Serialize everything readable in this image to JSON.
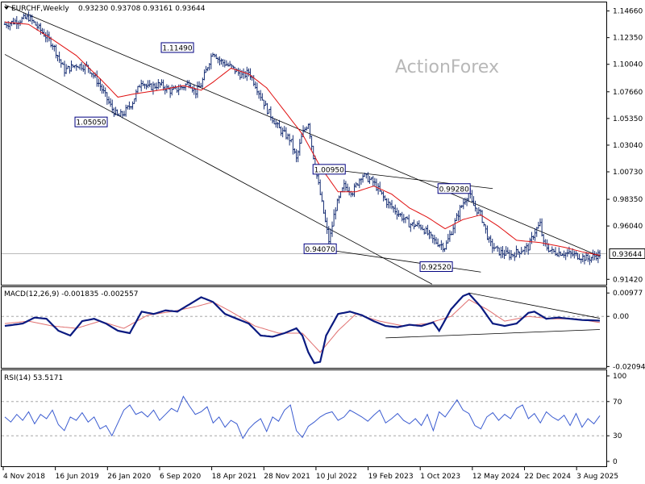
{
  "chart_data": {
    "type": "candlestick",
    "watermark": "ActionForex",
    "x_labels": [
      "4 Nov 2018",
      "16 Jun 2019",
      "26 Jan 2020",
      "6 Sep 2020",
      "18 Apr 2021",
      "28 Nov 2021",
      "10 Jul 2022",
      "19 Feb 2023",
      "1 Oct 2023",
      "12 May 2024",
      "22 Dec 2024",
      "3 Aug 2025"
    ],
    "price_panel": {
      "header": {
        "symbol": "EURCHF,Weekly",
        "ohlc": "0.93230 0.93708 0.93161 0.93644"
      },
      "y_ticks": [
        "1.14660",
        "1.12350",
        "1.10040",
        "1.07660",
        "1.05350",
        "1.03040",
        "1.00730",
        "0.98350",
        "0.96040",
        "0.93644",
        "0.91420"
      ],
      "ylim": [
        0.9095,
        1.154
      ],
      "current_price": "0.93644",
      "current_value": 0.93644,
      "annotations": [
        {
          "text": "1.11490",
          "x": 0.29,
          "y": 1.1149
        },
        {
          "text": "1.05050",
          "x": 0.145,
          "y": 1.0505
        },
        {
          "text": "1.00950",
          "x": 0.545,
          "y": 1.0095
        },
        {
          "text": "0.99280",
          "x": 0.755,
          "y": 0.9928
        },
        {
          "text": "0.94070",
          "x": 0.53,
          "y": 0.9407
        },
        {
          "text": "0.92520",
          "x": 0.725,
          "y": 0.9252
        }
      ],
      "trendlines": [
        {
          "x1": 0.0,
          "y1": 1.152,
          "x2": 1.0,
          "y2": 0.934
        },
        {
          "x1": 0.0,
          "y1": 1.109,
          "x2": 0.718,
          "y2": 0.91
        },
        {
          "x1": 0.545,
          "y1": 1.0095,
          "x2": 0.82,
          "y2": 0.9928
        },
        {
          "x1": 0.53,
          "y1": 0.9407,
          "x2": 0.8,
          "y2": 0.9205
        }
      ],
      "close_path": [
        [
          0.0,
          1.135
        ],
        [
          0.02,
          1.138
        ],
        [
          0.04,
          1.141
        ],
        [
          0.06,
          1.13
        ],
        [
          0.08,
          1.118
        ],
        [
          0.1,
          1.095
        ],
        [
          0.12,
          1.1
        ],
        [
          0.14,
          1.098
        ],
        [
          0.16,
          1.082
        ],
        [
          0.18,
          1.062
        ],
        [
          0.19,
          1.055
        ],
        [
          0.2,
          1.058
        ],
        [
          0.215,
          1.068
        ],
        [
          0.23,
          1.087
        ],
        [
          0.24,
          1.08
        ],
        [
          0.26,
          1.083
        ],
        [
          0.28,
          1.077
        ],
        [
          0.3,
          1.081
        ],
        [
          0.31,
          1.085
        ],
        [
          0.32,
          1.076
        ],
        [
          0.33,
          1.083
        ],
        [
          0.35,
          1.112
        ],
        [
          0.36,
          1.104
        ],
        [
          0.38,
          1.098
        ],
        [
          0.4,
          1.09
        ],
        [
          0.41,
          1.094
        ],
        [
          0.42,
          1.084
        ],
        [
          0.44,
          1.062
        ],
        [
          0.46,
          1.045
        ],
        [
          0.48,
          1.035
        ],
        [
          0.49,
          1.018
        ],
        [
          0.5,
          1.04
        ],
        [
          0.51,
          1.05
        ],
        [
          0.52,
          1.016
        ],
        [
          0.53,
          0.988
        ],
        [
          0.54,
          0.96
        ],
        [
          0.545,
          0.946
        ],
        [
          0.555,
          0.975
        ],
        [
          0.57,
          0.995
        ],
        [
          0.585,
          0.99
        ],
        [
          0.6,
          1.005
        ],
        [
          0.62,
          0.998
        ],
        [
          0.64,
          0.982
        ],
        [
          0.66,
          0.972
        ],
        [
          0.68,
          0.962
        ],
        [
          0.7,
          0.96
        ],
        [
          0.72,
          0.948
        ],
        [
          0.74,
          0.942
        ],
        [
          0.75,
          0.955
        ],
        [
          0.765,
          0.975
        ],
        [
          0.78,
          0.99
        ],
        [
          0.785,
          0.98
        ],
        [
          0.8,
          0.97
        ],
        [
          0.815,
          0.945
        ],
        [
          0.83,
          0.938
        ],
        [
          0.85,
          0.935
        ],
        [
          0.87,
          0.94
        ],
        [
          0.88,
          0.942
        ],
        [
          0.89,
          0.955
        ],
        [
          0.9,
          0.962
        ],
        [
          0.905,
          0.945
        ],
        [
          0.92,
          0.938
        ],
        [
          0.94,
          0.937
        ],
        [
          0.96,
          0.935
        ],
        [
          0.98,
          0.932
        ],
        [
          1.0,
          0.9364
        ]
      ],
      "ma_path": [
        [
          0.0,
          1.137
        ],
        [
          0.04,
          1.135
        ],
        [
          0.08,
          1.122
        ],
        [
          0.12,
          1.108
        ],
        [
          0.16,
          1.088
        ],
        [
          0.19,
          1.072
        ],
        [
          0.22,
          1.075
        ],
        [
          0.26,
          1.078
        ],
        [
          0.3,
          1.082
        ],
        [
          0.33,
          1.078
        ],
        [
          0.35,
          1.085
        ],
        [
          0.38,
          1.097
        ],
        [
          0.41,
          1.092
        ],
        [
          0.44,
          1.08
        ],
        [
          0.47,
          1.06
        ],
        [
          0.5,
          1.04
        ],
        [
          0.53,
          1.012
        ],
        [
          0.56,
          0.99
        ],
        [
          0.59,
          0.99
        ],
        [
          0.62,
          0.995
        ],
        [
          0.65,
          0.988
        ],
        [
          0.68,
          0.976
        ],
        [
          0.71,
          0.968
        ],
        [
          0.74,
          0.958
        ],
        [
          0.77,
          0.966
        ],
        [
          0.8,
          0.97
        ],
        [
          0.83,
          0.96
        ],
        [
          0.86,
          0.948
        ],
        [
          0.9,
          0.946
        ],
        [
          0.94,
          0.942
        ],
        [
          0.97,
          0.938
        ],
        [
          1.0,
          0.935
        ]
      ]
    },
    "macd_panel": {
      "header": "MACD(12,26,9) -0.001835 -0.002557",
      "y_ticks": [
        "0.00977",
        "0.00",
        "-0.020949"
      ],
      "ylim": [
        -0.0215,
        0.0122
      ],
      "zero_value": 0.0,
      "trendlines": [
        {
          "x1": 0.78,
          "y1": 0.0098,
          "x2": 1.0,
          "y2": -0.0008
        },
        {
          "x1": 0.64,
          "y1": -0.009,
          "x2": 1.0,
          "y2": -0.0055
        }
      ],
      "macd_path": [
        [
          0.0,
          -0.004
        ],
        [
          0.03,
          -0.003
        ],
        [
          0.05,
          -0.0005
        ],
        [
          0.07,
          -0.001
        ],
        [
          0.09,
          -0.006
        ],
        [
          0.11,
          -0.008
        ],
        [
          0.13,
          -0.002
        ],
        [
          0.15,
          -0.001
        ],
        [
          0.17,
          -0.003
        ],
        [
          0.19,
          -0.006
        ],
        [
          0.21,
          -0.007
        ],
        [
          0.23,
          0.002
        ],
        [
          0.25,
          0.001
        ],
        [
          0.27,
          0.0025
        ],
        [
          0.29,
          0.002
        ],
        [
          0.31,
          0.005
        ],
        [
          0.33,
          0.008
        ],
        [
          0.35,
          0.006
        ],
        [
          0.37,
          0.001
        ],
        [
          0.39,
          -0.001
        ],
        [
          0.41,
          -0.003
        ],
        [
          0.43,
          -0.008
        ],
        [
          0.45,
          -0.0085
        ],
        [
          0.47,
          -0.007
        ],
        [
          0.49,
          -0.005
        ],
        [
          0.5,
          -0.008
        ],
        [
          0.51,
          -0.015
        ],
        [
          0.52,
          -0.0195
        ],
        [
          0.53,
          -0.019
        ],
        [
          0.54,
          -0.008
        ],
        [
          0.56,
          0.001
        ],
        [
          0.58,
          0.002
        ],
        [
          0.6,
          0.0005
        ],
        [
          0.62,
          -0.002
        ],
        [
          0.64,
          -0.004
        ],
        [
          0.66,
          -0.0045
        ],
        [
          0.68,
          -0.0035
        ],
        [
          0.7,
          -0.004
        ],
        [
          0.72,
          -0.0025
        ],
        [
          0.73,
          -0.006
        ],
        [
          0.75,
          0.003
        ],
        [
          0.77,
          0.0085
        ],
        [
          0.78,
          0.0095
        ],
        [
          0.8,
          0.004
        ],
        [
          0.82,
          -0.003
        ],
        [
          0.84,
          -0.004
        ],
        [
          0.86,
          -0.003
        ],
        [
          0.88,
          0.0015
        ],
        [
          0.89,
          0.002
        ],
        [
          0.91,
          -0.001
        ],
        [
          0.93,
          -0.0005
        ],
        [
          0.95,
          -0.001
        ],
        [
          0.97,
          -0.0015
        ],
        [
          1.0,
          -0.0018
        ]
      ],
      "signal_path": [
        [
          0.0,
          -0.003
        ],
        [
          0.04,
          -0.002
        ],
        [
          0.08,
          -0.004
        ],
        [
          0.12,
          -0.005
        ],
        [
          0.16,
          -0.002
        ],
        [
          0.2,
          -0.005
        ],
        [
          0.24,
          0.0005
        ],
        [
          0.28,
          0.002
        ],
        [
          0.32,
          0.004
        ],
        [
          0.35,
          0.006
        ],
        [
          0.38,
          0.002
        ],
        [
          0.42,
          -0.004
        ],
        [
          0.46,
          -0.007
        ],
        [
          0.5,
          -0.007
        ],
        [
          0.53,
          -0.015
        ],
        [
          0.56,
          -0.006
        ],
        [
          0.59,
          0.001
        ],
        [
          0.63,
          -0.002
        ],
        [
          0.67,
          -0.004
        ],
        [
          0.71,
          -0.003
        ],
        [
          0.75,
          0.0
        ],
        [
          0.78,
          0.007
        ],
        [
          0.81,
          0.003
        ],
        [
          0.84,
          -0.002
        ],
        [
          0.88,
          0.0
        ],
        [
          0.92,
          -0.001
        ],
        [
          0.96,
          -0.001
        ],
        [
          1.0,
          -0.0026
        ]
      ]
    },
    "rsi_panel": {
      "header": "RSI(14) 53.5171",
      "y_ticks": [
        "100",
        "70",
        "30",
        "0"
      ],
      "levels": [
        70,
        30
      ],
      "ylim": [
        0,
        100
      ],
      "rsi_path": [
        [
          0.0,
          52
        ],
        [
          0.01,
          46
        ],
        [
          0.02,
          55
        ],
        [
          0.03,
          48
        ],
        [
          0.04,
          58
        ],
        [
          0.05,
          44
        ],
        [
          0.06,
          55
        ],
        [
          0.07,
          50
        ],
        [
          0.08,
          60
        ],
        [
          0.09,
          43
        ],
        [
          0.1,
          36
        ],
        [
          0.11,
          52
        ],
        [
          0.12,
          48
        ],
        [
          0.13,
          57
        ],
        [
          0.14,
          46
        ],
        [
          0.15,
          52
        ],
        [
          0.16,
          38
        ],
        [
          0.17,
          42
        ],
        [
          0.18,
          30
        ],
        [
          0.19,
          45
        ],
        [
          0.2,
          60
        ],
        [
          0.21,
          66
        ],
        [
          0.22,
          55
        ],
        [
          0.23,
          58
        ],
        [
          0.24,
          52
        ],
        [
          0.25,
          60
        ],
        [
          0.26,
          48
        ],
        [
          0.27,
          55
        ],
        [
          0.28,
          62
        ],
        [
          0.29,
          58
        ],
        [
          0.3,
          76
        ],
        [
          0.31,
          65
        ],
        [
          0.32,
          55
        ],
        [
          0.33,
          58
        ],
        [
          0.34,
          64
        ],
        [
          0.35,
          45
        ],
        [
          0.36,
          52
        ],
        [
          0.37,
          40
        ],
        [
          0.38,
          48
        ],
        [
          0.39,
          44
        ],
        [
          0.4,
          27
        ],
        [
          0.41,
          38
        ],
        [
          0.42,
          45
        ],
        [
          0.43,
          50
        ],
        [
          0.44,
          35
        ],
        [
          0.45,
          52
        ],
        [
          0.46,
          47
        ],
        [
          0.47,
          60
        ],
        [
          0.48,
          66
        ],
        [
          0.49,
          36
        ],
        [
          0.5,
          28
        ],
        [
          0.51,
          41
        ],
        [
          0.52,
          46
        ],
        [
          0.53,
          52
        ],
        [
          0.54,
          56
        ],
        [
          0.55,
          58
        ],
        [
          0.56,
          48
        ],
        [
          0.57,
          52
        ],
        [
          0.58,
          60
        ],
        [
          0.59,
          56
        ],
        [
          0.6,
          52
        ],
        [
          0.61,
          47
        ],
        [
          0.62,
          54
        ],
        [
          0.63,
          60
        ],
        [
          0.64,
          45
        ],
        [
          0.65,
          50
        ],
        [
          0.66,
          56
        ],
        [
          0.67,
          48
        ],
        [
          0.68,
          44
        ],
        [
          0.69,
          50
        ],
        [
          0.7,
          42
        ],
        [
          0.71,
          55
        ],
        [
          0.72,
          36
        ],
        [
          0.73,
          58
        ],
        [
          0.74,
          52
        ],
        [
          0.75,
          62
        ],
        [
          0.76,
          72
        ],
        [
          0.77,
          60
        ],
        [
          0.78,
          56
        ],
        [
          0.79,
          42
        ],
        [
          0.8,
          38
        ],
        [
          0.81,
          52
        ],
        [
          0.82,
          57
        ],
        [
          0.83,
          48
        ],
        [
          0.84,
          55
        ],
        [
          0.85,
          50
        ],
        [
          0.86,
          62
        ],
        [
          0.87,
          66
        ],
        [
          0.88,
          50
        ],
        [
          0.89,
          56
        ],
        [
          0.9,
          45
        ],
        [
          0.91,
          58
        ],
        [
          0.92,
          52
        ],
        [
          0.93,
          48
        ],
        [
          0.94,
          54
        ],
        [
          0.95,
          42
        ],
        [
          0.96,
          56
        ],
        [
          0.97,
          40
        ],
        [
          0.98,
          50
        ],
        [
          0.99,
          44
        ],
        [
          1.0,
          53.5
        ]
      ]
    }
  }
}
